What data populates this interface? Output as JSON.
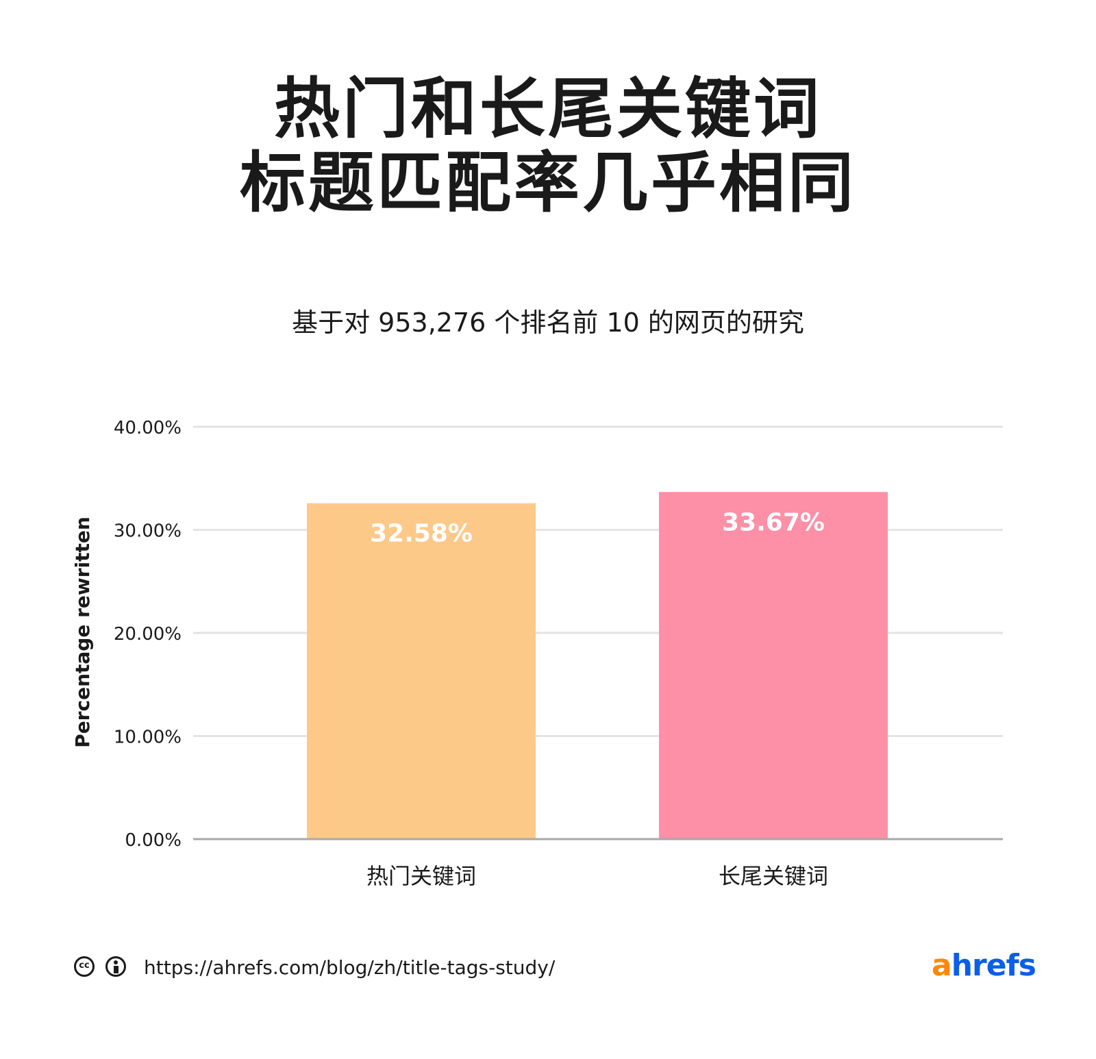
{
  "title_lines": [
    "热门和长尾关键词",
    "标题匹配率几乎相同"
  ],
  "subtitle": "基于对 953,276 个排名前 10 的网页的研究",
  "chart_data": {
    "type": "bar",
    "categories": [
      "热门关键词",
      "长尾关键词"
    ],
    "values": [
      32.58,
      33.67
    ],
    "value_labels": [
      "32.58%",
      "33.67%"
    ],
    "colors": [
      "#fdc989",
      "#fd8fa7"
    ],
    "ylabel": "Percentage rewritten",
    "xlabel": "",
    "ylim": [
      0,
      40
    ],
    "yticks": [
      0,
      10,
      20,
      30,
      40
    ],
    "ytick_labels": [
      "0.00%",
      "10.00%",
      "20.00%",
      "30.00%",
      "40.00%"
    ],
    "grid": true
  },
  "footer": {
    "cc_icon": "cc-icon",
    "by_icon": "attribution-icon",
    "url": "https://ahrefs.com/blog/zh/title-tags-study/",
    "logo_a": "a",
    "logo_rest": "hrefs"
  }
}
